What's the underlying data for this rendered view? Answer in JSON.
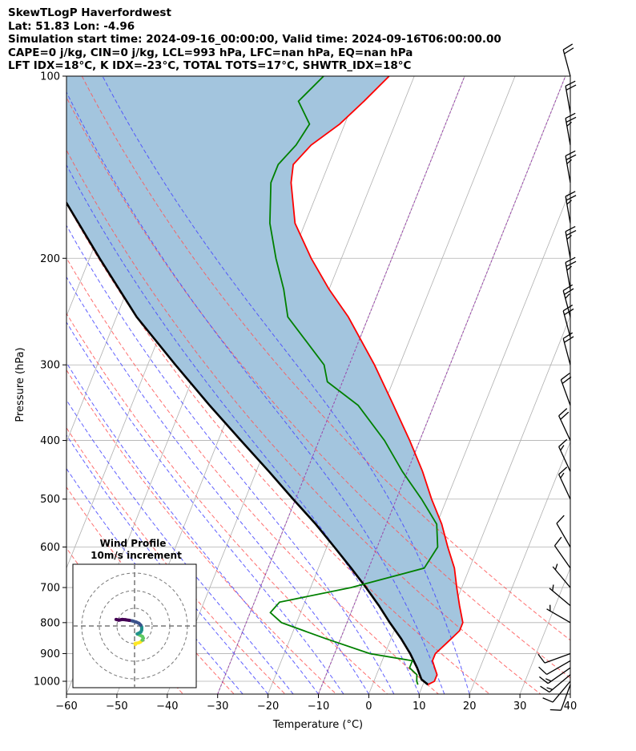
{
  "title_lines": [
    "SkewTLogP Haverfordwest",
    "Lat: 51.83   Lon: -4.96",
    "Simulation start time: 2024-09-16_00:00:00, Valid time: 2024-09-16T06:00:00.00",
    "CAPE=0 j/kg, CIN=0 j/kg, LCL=993 hPa, LFC=nan hPa, EQ=nan hPa",
    "LFT IDX=18°C, K IDX=-23°C, TOTAL TOTS=17°C, SHWTR_IDX=18°C"
  ],
  "chart_data": {
    "type": "skewt",
    "xlabel": "Temperature (°C)",
    "ylabel": "Pressure (hPa)",
    "xlim": [
      -60,
      40
    ],
    "ylim": [
      1050,
      100
    ],
    "y_scale": "log",
    "x_ticks": [
      -60,
      -50,
      -40,
      -30,
      -20,
      -10,
      0,
      10,
      20,
      30,
      40
    ],
    "y_ticks": [
      100,
      200,
      300,
      400,
      500,
      600,
      700,
      800,
      900,
      1000
    ],
    "grid": true,
    "colors": {
      "temperature": "#ff0000",
      "dewpoint": "#008000",
      "parcel": "#000000",
      "fill": "#a3c5de",
      "dry_adiabat": "#ff5555",
      "moist_adiabat": "#4444ff",
      "mixing_ratio": "#444444",
      "isotherm_other": "#9944aa"
    },
    "temperature_profile": [
      [
        1013,
        11
      ],
      [
        1000,
        12
      ],
      [
        975,
        12
      ],
      [
        950,
        11
      ],
      [
        925,
        10
      ],
      [
        900,
        10
      ],
      [
        875,
        11
      ],
      [
        850,
        12
      ],
      [
        825,
        13
      ],
      [
        800,
        13
      ],
      [
        750,
        11
      ],
      [
        700,
        9
      ],
      [
        650,
        7
      ],
      [
        600,
        4
      ],
      [
        550,
        1
      ],
      [
        500,
        -3
      ],
      [
        450,
        -7
      ],
      [
        400,
        -12
      ],
      [
        350,
        -18
      ],
      [
        300,
        -25
      ],
      [
        250,
        -34
      ],
      [
        225,
        -40
      ],
      [
        200,
        -46
      ],
      [
        175,
        -52
      ],
      [
        150,
        -56
      ],
      [
        140,
        -57
      ],
      [
        130,
        -55
      ],
      [
        120,
        -51
      ],
      [
        110,
        -48
      ],
      [
        100,
        -45
      ]
    ],
    "dewpoint_profile": [
      [
        1013,
        9
      ],
      [
        1000,
        8.5
      ],
      [
        975,
        8
      ],
      [
        950,
        6
      ],
      [
        925,
        6
      ],
      [
        900,
        -3
      ],
      [
        850,
        -13
      ],
      [
        800,
        -23
      ],
      [
        770,
        -26
      ],
      [
        740,
        -25
      ],
      [
        700,
        -12
      ],
      [
        650,
        1
      ],
      [
        600,
        2
      ],
      [
        550,
        0
      ],
      [
        500,
        -5
      ],
      [
        450,
        -11
      ],
      [
        400,
        -17
      ],
      [
        350,
        -25
      ],
      [
        320,
        -33
      ],
      [
        300,
        -35
      ],
      [
        250,
        -46
      ],
      [
        225,
        -49
      ],
      [
        200,
        -53
      ],
      [
        175,
        -57
      ],
      [
        150,
        -60
      ],
      [
        140,
        -60
      ],
      [
        130,
        -58
      ],
      [
        120,
        -57
      ],
      [
        110,
        -61
      ],
      [
        100,
        -58
      ]
    ],
    "parcel_profile": [
      [
        1013,
        11
      ],
      [
        993,
        9.3
      ],
      [
        950,
        7.5
      ],
      [
        900,
        5
      ],
      [
        850,
        2
      ],
      [
        800,
        -1.5
      ],
      [
        750,
        -5
      ],
      [
        700,
        -9
      ],
      [
        650,
        -13.5
      ],
      [
        600,
        -18.5
      ],
      [
        550,
        -24
      ],
      [
        500,
        -30.5
      ],
      [
        450,
        -37.5
      ],
      [
        400,
        -45.5
      ],
      [
        350,
        -54.5
      ],
      [
        300,
        -64.5
      ],
      [
        250,
        -76
      ],
      [
        200,
        -88
      ],
      [
        150,
        -103
      ],
      [
        125,
        -112
      ],
      [
        100,
        -122
      ]
    ],
    "dry_adiabats_theta_k": [
      233,
      243,
      253,
      263,
      273,
      283,
      293,
      303,
      313,
      323
    ],
    "moist_adiabats_thetaw_c": [
      -25,
      -20,
      -15,
      -10,
      -5,
      0,
      5,
      10,
      15,
      20
    ],
    "mixing_ratio_gkg": [
      0.1,
      0.2,
      0.4,
      0.7,
      1,
      2,
      3,
      5,
      8,
      12,
      16,
      20,
      25,
      30,
      36,
      42
    ],
    "wind_barbs": [
      {
        "p": 1013,
        "dir": 200,
        "kt": 10
      },
      {
        "p": 1000,
        "dir": 220,
        "kt": 12
      },
      {
        "p": 975,
        "dir": 230,
        "kt": 15
      },
      {
        "p": 950,
        "dir": 235,
        "kt": 15
      },
      {
        "p": 925,
        "dir": 240,
        "kt": 14
      },
      {
        "p": 900,
        "dir": 250,
        "kt": 10
      },
      {
        "p": 800,
        "dir": 300,
        "kt": 5
      },
      {
        "p": 750,
        "dir": 310,
        "kt": 5
      },
      {
        "p": 700,
        "dir": 320,
        "kt": 5
      },
      {
        "p": 650,
        "dir": 325,
        "kt": 10
      },
      {
        "p": 600,
        "dir": 330,
        "kt": 10
      },
      {
        "p": 500,
        "dir": 335,
        "kt": 15
      },
      {
        "p": 450,
        "dir": 335,
        "kt": 15
      },
      {
        "p": 400,
        "dir": 335,
        "kt": 20
      },
      {
        "p": 350,
        "dir": 340,
        "kt": 20
      },
      {
        "p": 300,
        "dir": 345,
        "kt": 20
      },
      {
        "p": 270,
        "dir": 345,
        "kt": 20
      },
      {
        "p": 250,
        "dir": 345,
        "kt": 25
      },
      {
        "p": 225,
        "dir": 350,
        "kt": 25
      },
      {
        "p": 200,
        "dir": 350,
        "kt": 25
      },
      {
        "p": 175,
        "dir": 350,
        "kt": 25
      },
      {
        "p": 150,
        "dir": 350,
        "kt": 25
      },
      {
        "p": 130,
        "dir": 350,
        "kt": 25
      },
      {
        "p": 115,
        "dir": 350,
        "kt": 20
      },
      {
        "p": 100,
        "dir": 345,
        "kt": 20
      }
    ],
    "hodograph": {
      "title": "Wind Profile",
      "subtitle": "10m/s increment",
      "rings_ms": [
        10,
        20,
        30
      ],
      "limit_ms": 35,
      "colormap": [
        "#440154",
        "#3b528b",
        "#21918c",
        "#5ec962",
        "#fde725"
      ],
      "points_uv": [
        [
          0.5,
          -10.5
        ],
        [
          0.3,
          -10.0
        ],
        [
          1.0,
          -9.8
        ],
        [
          2.5,
          -9.5
        ],
        [
          3.5,
          -9.0
        ],
        [
          4.3,
          -8.0
        ],
        [
          5.0,
          -7.0
        ],
        [
          4.5,
          -6.0
        ],
        [
          3.0,
          -5.2
        ],
        [
          1.5,
          -4.5
        ],
        [
          3.5,
          -3.5
        ],
        [
          4.0,
          -2.5
        ],
        [
          4.1,
          -1.5
        ],
        [
          4.0,
          -0.5
        ],
        [
          3.5,
          0.5
        ],
        [
          2.5,
          1.5
        ],
        [
          1.0,
          2.2
        ],
        [
          -1.0,
          2.8
        ],
        [
          -3.0,
          3.2
        ],
        [
          -5.0,
          3.5
        ],
        [
          -7.0,
          3.7
        ],
        [
          -8.0,
          3.5
        ],
        [
          -9.0,
          3.3
        ],
        [
          -10.5,
          3.7
        ]
      ]
    }
  }
}
